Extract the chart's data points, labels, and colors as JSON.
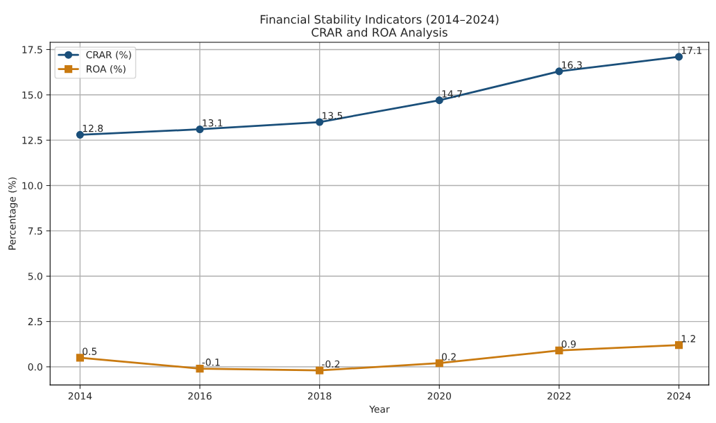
{
  "chart_data": {
    "type": "line",
    "title": "Financial Stability Indicators (2014–2024)\nCRAR and ROA Analysis",
    "xlabel": "Year",
    "ylabel": "Percentage (%)",
    "x": [
      2014,
      2016,
      2018,
      2020,
      2022,
      2024
    ],
    "series": [
      {
        "name": "CRAR (%)",
        "color": "#1a4f7a",
        "marker": "circle",
        "values": [
          12.8,
          13.1,
          13.5,
          14.7,
          16.3,
          17.1
        ]
      },
      {
        "name": "ROA (%)",
        "color": "#c97a10",
        "marker": "square",
        "values": [
          0.5,
          -0.1,
          -0.2,
          0.2,
          0.9,
          1.2
        ]
      }
    ],
    "xlim": [
      2013.5,
      2024.5
    ],
    "xticks": [
      2014,
      2016,
      2018,
      2020,
      2022,
      2024
    ],
    "ylim": [
      -1.0,
      17.9
    ],
    "yticks": [
      {
        "value": 0,
        "label": "0.0"
      },
      2.5,
      {
        "value": 5,
        "label": "5.0"
      },
      7.5,
      {
        "value": 10,
        "label": "10.0"
      },
      12.5,
      {
        "value": 15,
        "label": "15.0"
      },
      17.5
    ],
    "grid": true,
    "legend": "top left",
    "data_labels": true,
    "line_style": "solid"
  }
}
